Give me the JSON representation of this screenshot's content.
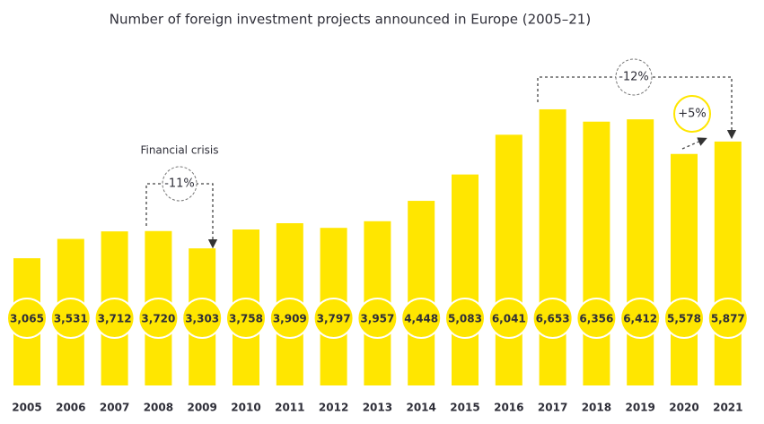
{
  "chart_data": {
    "type": "bar",
    "title": "Number of foreign investment projects announced in Europe (2005–21)",
    "categories": [
      "2005",
      "2006",
      "2007",
      "2008",
      "2009",
      "2010",
      "2011",
      "2012",
      "2013",
      "2014",
      "2015",
      "2016",
      "2017",
      "2018",
      "2019",
      "2020",
      "2021"
    ],
    "values": [
      3065,
      3531,
      3712,
      3720,
      3303,
      3758,
      3909,
      3797,
      3957,
      4448,
      5083,
      6041,
      6653,
      6356,
      6412,
      5578,
      5877
    ],
    "value_labels": [
      "3,065",
      "3,531",
      "3,712",
      "3,720",
      "3,303",
      "3,758",
      "3,909",
      "3,797",
      "3,957",
      "4,448",
      "5,083",
      "6,041",
      "6,653",
      "6,356",
      "6,412",
      "5,578",
      "5,877"
    ],
    "color": "#ffe600",
    "annotations": [
      "Financial crisis",
      "-11%",
      "-12%",
      "+5%"
    ]
  }
}
